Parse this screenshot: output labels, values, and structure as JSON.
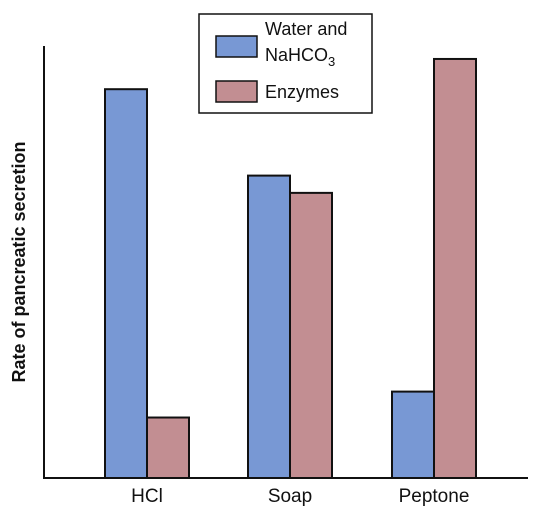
{
  "chart_data": {
    "type": "bar",
    "title": "",
    "xlabel": "",
    "ylabel": "Rate of pancreatic secretion",
    "categories": [
      "HCl",
      "Soap",
      "Peptone"
    ],
    "series": [
      {
        "name": "Water and NaHCO3",
        "color": "#7898d4",
        "values": [
          90,
          70,
          20
        ]
      },
      {
        "name": "Enzymes",
        "color": "#c28e92",
        "values": [
          14,
          66,
          97
        ]
      }
    ],
    "ylim": [
      0,
      100
    ],
    "y_ticks_shown": false,
    "grid": false,
    "legend_position": "top-center"
  },
  "legend": {
    "water_line1": "Water and",
    "water_line2_main": "NaHCO",
    "water_line2_sub": "3",
    "enzymes": "Enzymes"
  }
}
